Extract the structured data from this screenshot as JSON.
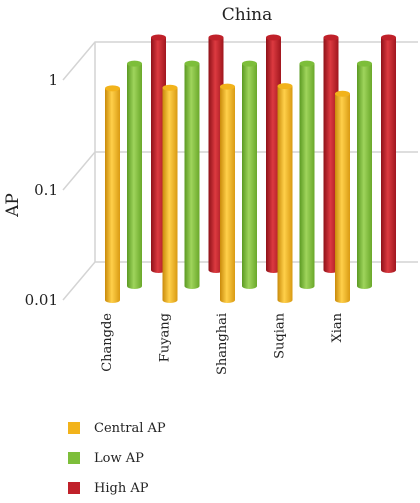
{
  "chart_data": {
    "type": "bar",
    "title": "China",
    "ylabel": "AP",
    "xlabel": "",
    "yscale": "log",
    "ylim": [
      0.01,
      1
    ],
    "yticks": [
      {
        "value": 0.01,
        "label": "0.01"
      },
      {
        "value": 0.1,
        "label": "0.1"
      },
      {
        "value": 1,
        "label": "1"
      }
    ],
    "categories": [
      "Changde",
      "Fuyang",
      "Shanghai",
      "Suqian",
      "Xian"
    ],
    "series": [
      {
        "name": "Central AP",
        "color": "#F2B31B",
        "values": [
          0.84,
          0.85,
          0.87,
          0.88,
          0.75
        ]
      },
      {
        "name": "Low AP",
        "color": "#7DBE3A",
        "values": [
          1.05,
          1.05,
          1.05,
          1.05,
          1.05
        ]
      },
      {
        "name": "High AP",
        "color": "#C0212A",
        "values": [
          1.3,
          1.3,
          1.3,
          1.3,
          1.3
        ]
      }
    ],
    "grid": true,
    "legend_position": "bottom-left"
  }
}
